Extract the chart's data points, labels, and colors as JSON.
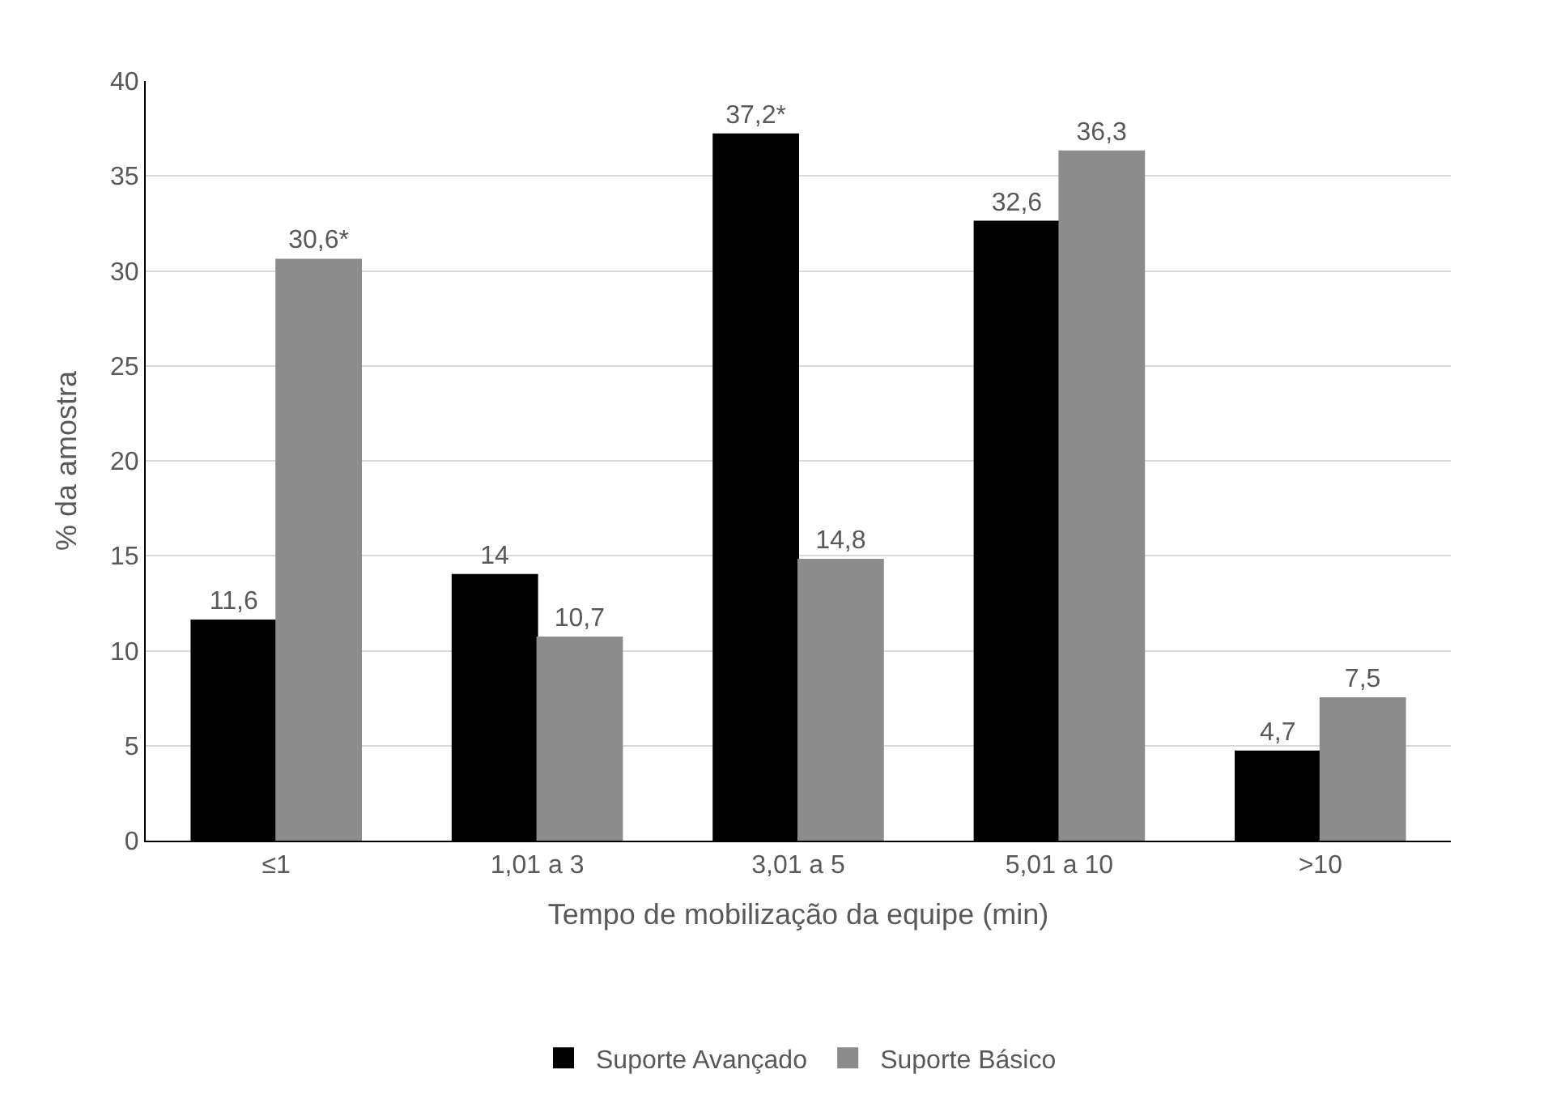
{
  "chart_data": {
    "type": "bar",
    "xlabel": "Tempo de mobilização da equipe (min)",
    "ylabel": "% da amostra",
    "categories": [
      "≤1",
      "1,01 a 3",
      "3,01 a 5",
      "5,01 a 10",
      ">10"
    ],
    "series": [
      {
        "name": "Suporte Avançado",
        "color": "#000000",
        "values": [
          11.6,
          14,
          37.2,
          32.6,
          4.7
        ],
        "value_labels": [
          "11,6",
          "14",
          "37,2*",
          "32,6",
          "4,7"
        ]
      },
      {
        "name": "Suporte Básico",
        "color": "#8c8c8c",
        "values": [
          30.6,
          10.7,
          14.8,
          36.3,
          7.5
        ],
        "value_labels": [
          "30,6*",
          "10,7",
          "14,8",
          "36,3",
          "7,5"
        ]
      }
    ],
    "ylim": [
      0,
      40
    ],
    "yticks": [
      0,
      5,
      10,
      15,
      20,
      25,
      30,
      35,
      40
    ],
    "grid": "y",
    "legend": "bottom"
  }
}
